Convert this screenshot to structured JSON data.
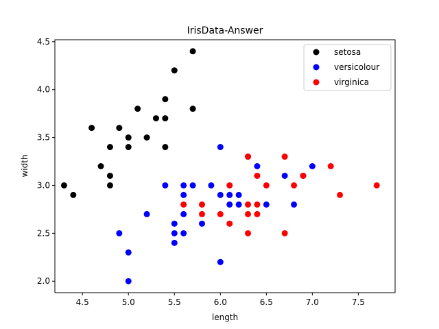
{
  "chart_data": {
    "type": "scatter",
    "title": "IrisData-Answer",
    "xlabel": "length",
    "ylabel": "width",
    "xlim": [
      4.2,
      7.9
    ],
    "ylim": [
      1.88,
      4.52
    ],
    "xticks": [
      4.5,
      5.0,
      5.5,
      6.0,
      6.5,
      7.0,
      7.5
    ],
    "xtick_labels": [
      "4.5",
      "5.0",
      "5.5",
      "6.0",
      "6.5",
      "7.0",
      "7.5"
    ],
    "yticks": [
      2.0,
      2.5,
      3.0,
      3.5,
      4.0,
      4.5
    ],
    "ytick_labels": [
      "2.0",
      "2.5",
      "3.0",
      "3.5",
      "4.0",
      "4.5"
    ],
    "grid": false,
    "legend_position": "top-right",
    "series": [
      {
        "name": "setosa",
        "color": "#000000",
        "points": [
          [
            4.3,
            3.0
          ],
          [
            4.4,
            2.9
          ],
          [
            4.6,
            3.6
          ],
          [
            4.7,
            3.2
          ],
          [
            4.8,
            3.4
          ],
          [
            4.8,
            3.1
          ],
          [
            4.8,
            3.0
          ],
          [
            4.9,
            3.6
          ],
          [
            5.0,
            3.5
          ],
          [
            5.0,
            3.4
          ],
          [
            5.1,
            3.8
          ],
          [
            5.2,
            3.5
          ],
          [
            5.3,
            3.7
          ],
          [
            5.4,
            3.9
          ],
          [
            5.4,
            3.7
          ],
          [
            5.4,
            3.4
          ],
          [
            5.5,
            4.2
          ],
          [
            5.7,
            4.4
          ],
          [
            5.7,
            3.8
          ]
        ]
      },
      {
        "name": "versicolour",
        "color": "#0000ff",
        "points": [
          [
            4.9,
            2.5
          ],
          [
            5.0,
            2.3
          ],
          [
            5.0,
            2.0
          ],
          [
            5.2,
            2.7
          ],
          [
            5.4,
            3.0
          ],
          [
            5.5,
            2.6
          ],
          [
            5.5,
            2.5
          ],
          [
            5.5,
            2.4
          ],
          [
            5.6,
            3.0
          ],
          [
            5.6,
            2.9
          ],
          [
            5.6,
            2.7
          ],
          [
            5.6,
            2.5
          ],
          [
            5.7,
            3.0
          ],
          [
            5.8,
            2.6
          ],
          [
            5.9,
            3.0
          ],
          [
            6.0,
            3.4
          ],
          [
            6.0,
            2.9
          ],
          [
            6.0,
            2.2
          ],
          [
            6.1,
            2.9
          ],
          [
            6.1,
            2.8
          ],
          [
            6.2,
            2.9
          ],
          [
            6.2,
            2.8
          ],
          [
            6.3,
            3.3
          ],
          [
            6.4,
            3.2
          ],
          [
            6.5,
            2.8
          ],
          [
            6.7,
            3.1
          ],
          [
            6.8,
            2.8
          ],
          [
            6.9,
            3.1
          ],
          [
            7.0,
            3.2
          ]
        ]
      },
      {
        "name": "virginica",
        "color": "#ff0000",
        "points": [
          [
            5.6,
            2.8
          ],
          [
            5.8,
            2.8
          ],
          [
            5.8,
            2.7
          ],
          [
            6.0,
            2.7
          ],
          [
            6.1,
            3.0
          ],
          [
            6.1,
            2.6
          ],
          [
            6.3,
            3.3
          ],
          [
            6.3,
            2.8
          ],
          [
            6.3,
            2.7
          ],
          [
            6.3,
            2.5
          ],
          [
            6.4,
            3.1
          ],
          [
            6.4,
            2.8
          ],
          [
            6.4,
            2.7
          ],
          [
            6.5,
            3.0
          ],
          [
            6.7,
            3.3
          ],
          [
            6.7,
            2.5
          ],
          [
            6.8,
            3.0
          ],
          [
            6.9,
            3.1
          ],
          [
            7.2,
            3.2
          ],
          [
            7.3,
            2.9
          ],
          [
            7.7,
            3.0
          ]
        ]
      }
    ]
  }
}
